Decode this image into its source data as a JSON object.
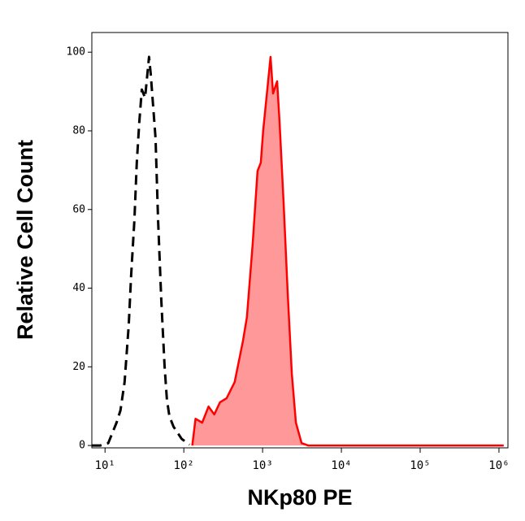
{
  "chart_data": {
    "type": "histogram-overlay",
    "xlabel": "NKp80 PE",
    "ylabel": "Relative Cell Count",
    "xscale": "log",
    "xlim": [
      6.8,
      1300000
    ],
    "ylim": [
      -0.6,
      105
    ],
    "xticks": [
      {
        "value": 10,
        "label": "10¹"
      },
      {
        "value": 100,
        "label": "10²"
      },
      {
        "value": 1000,
        "label": "10³"
      },
      {
        "value": 10000,
        "label": "10⁴"
      },
      {
        "value": 100000,
        "label": "10⁵"
      },
      {
        "value": 1000000,
        "label": "10⁶"
      }
    ],
    "yticks": [
      0,
      20,
      40,
      60,
      80,
      100
    ],
    "series": [
      {
        "color": "#000000",
        "dashed": true,
        "fill": null,
        "x": [
          6.8,
          8.7,
          11,
          14,
          15.7,
          17.7,
          20,
          21.4,
          23.6,
          25.3,
          27.2,
          29.3,
          32.2,
          36.2,
          38,
          40.8,
          43.8,
          47.1,
          51.8,
          57,
          61,
          65.7,
          74,
          93.9,
          118
        ],
        "values": [
          0,
          0,
          0.6,
          5.8,
          8.9,
          16.1,
          30.6,
          43,
          57.4,
          71.9,
          82.2,
          90.5,
          88.4,
          98.8,
          94.6,
          86.4,
          78.1,
          57.4,
          36.8,
          20.2,
          11.6,
          7.4,
          4.8,
          1.7,
          0.2
        ]
      },
      {
        "color": "#ff0000",
        "dashed": false,
        "fill": "#ff9999",
        "x": [
          128,
          141,
          171,
          206,
          244,
          288,
          349,
          442,
          561,
          632,
          748,
          863,
          949,
          1019,
          1148,
          1262,
          1357,
          1529,
          1642,
          1849,
          2083,
          2348,
          2645,
          3125,
          3784,
          1150000
        ],
        "values": [
          0,
          6.8,
          5.8,
          9.9,
          7.9,
          11,
          12,
          16.1,
          26.4,
          32.6,
          51.2,
          69.8,
          71.9,
          80.2,
          90.5,
          98.8,
          89.5,
          92.6,
          82.2,
          61.6,
          38.8,
          18.2,
          5.8,
          0.6,
          0,
          0
        ]
      }
    ]
  }
}
